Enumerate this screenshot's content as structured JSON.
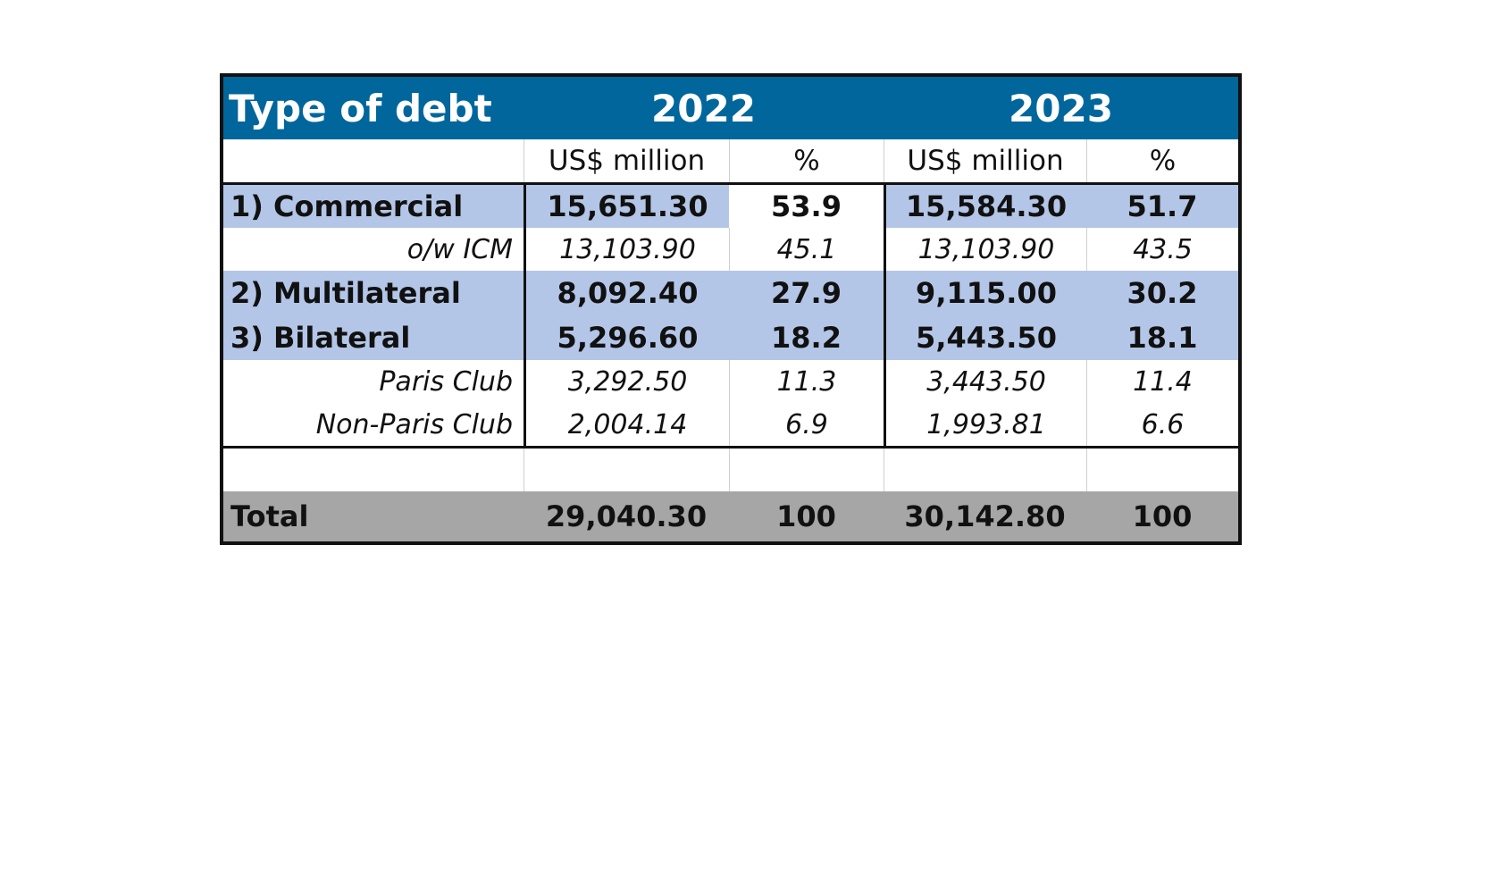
{
  "chart_data": {
    "type": "table",
    "header": {
      "label": "Type of debt",
      "years": [
        "2022",
        "2023"
      ]
    },
    "subheader": [
      "",
      "US$ million",
      "%",
      "US$ million",
      "%"
    ],
    "rows": [
      {
        "label": "1) Commercial",
        "values": [
          "15,651.30",
          "53.9",
          "15,584.30",
          "51.7"
        ]
      },
      {
        "label": "o/w ICM",
        "values": [
          "13,103.90",
          "45.1",
          "13,103.90",
          "43.5"
        ]
      },
      {
        "label": "2) Multilateral",
        "values": [
          "8,092.40",
          "27.9",
          "9,115.00",
          "30.2"
        ]
      },
      {
        "label": "3) Bilateral",
        "values": [
          "5,296.60",
          "18.2",
          "5,443.50",
          "18.1"
        ]
      },
      {
        "label": "Paris Club",
        "values": [
          "3,292.50",
          "11.3",
          "3,443.50",
          "11.4"
        ]
      },
      {
        "label": "Non-Paris Club",
        "values": [
          "2,004.14",
          "6.9",
          "1,993.81",
          "6.6"
        ]
      }
    ],
    "total": {
      "label": "Total",
      "values": [
        "29,040.30",
        "100",
        "30,142.80",
        "100"
      ]
    }
  },
  "colors": {
    "header_bg": "#00669c",
    "header_text": "#ffffff",
    "highlight_bg": "#b4c6e7",
    "total_bg": "#a6a6a6"
  }
}
